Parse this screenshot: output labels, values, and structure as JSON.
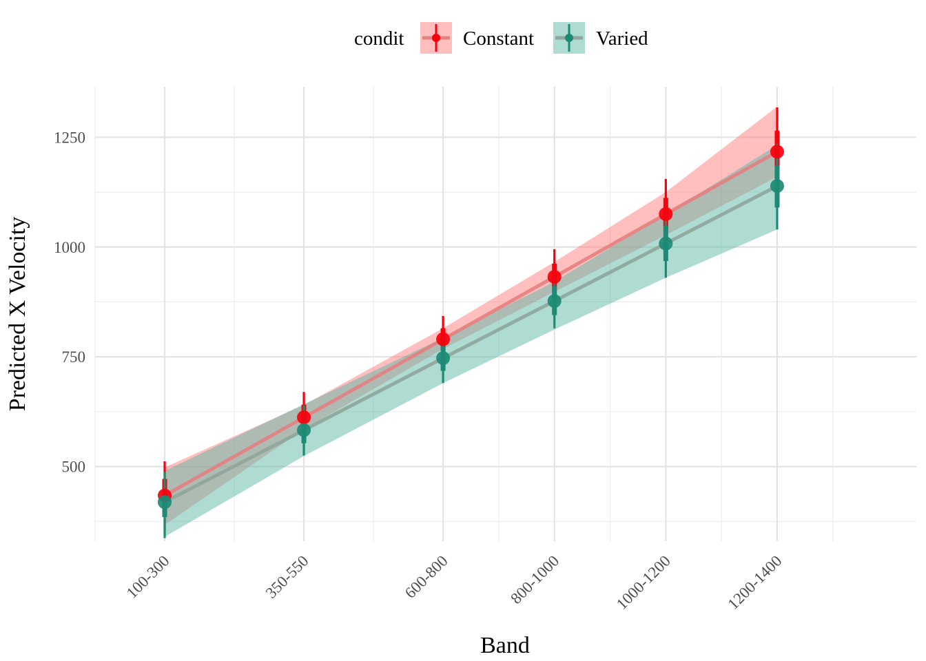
{
  "chart_data": {
    "type": "line",
    "xlabel": "Band",
    "ylabel": "Predicted X Velocity",
    "categories": [
      "100-300",
      "350-550",
      "600-800",
      "800-1000",
      "1000-1200",
      "1200-1400"
    ],
    "x": [
      200,
      450,
      700,
      900,
      1100,
      1300
    ],
    "xlim": [
      75,
      1550
    ],
    "ylim": [
      330,
      1365
    ],
    "y_ticks": [
      500,
      750,
      1000,
      1250
    ],
    "grid": true,
    "legend": {
      "title": "condit",
      "position": "top"
    },
    "series": [
      {
        "name": "Constant",
        "color": "#F8000C",
        "line_color": "#E58080",
        "ribbon_color": "#FF8080",
        "values": [
          434,
          612,
          790,
          932,
          1075,
          1217
        ],
        "ribbon_lower": [
          367,
          585,
          768,
          898,
          1027,
          1160
        ],
        "ribbon_upper": [
          498,
          640,
          815,
          966,
          1125,
          1320
        ],
        "interval_66": [
          395,
          472,
          583,
          641,
          765,
          815,
          900,
          962,
          1040,
          1112,
          1170,
          1265
        ],
        "interval_95": [
          355,
          512,
          555,
          670,
          737,
          843,
          867,
          995,
          990,
          1155,
          1095,
          1318
        ]
      },
      {
        "name": "Varied",
        "color": "#1D8A75",
        "line_color": "#8FA59B",
        "ribbon_color": "#5DB8A6",
        "values": [
          419,
          583,
          747,
          877,
          1008,
          1139
        ],
        "ribbon_lower": [
          340,
          524,
          690,
          812,
          930,
          1040
        ],
        "ribbon_upper": [
          490,
          642,
          793,
          921,
          1075,
          1232
        ],
        "interval_66": [
          385,
          448,
          553,
          613,
          718,
          775,
          845,
          910,
          968,
          1048,
          1090,
          1185
        ],
        "interval_95": [
          337,
          488,
          525,
          640,
          690,
          800,
          815,
          940,
          930,
          1088,
          1040,
          1235
        ]
      }
    ]
  }
}
